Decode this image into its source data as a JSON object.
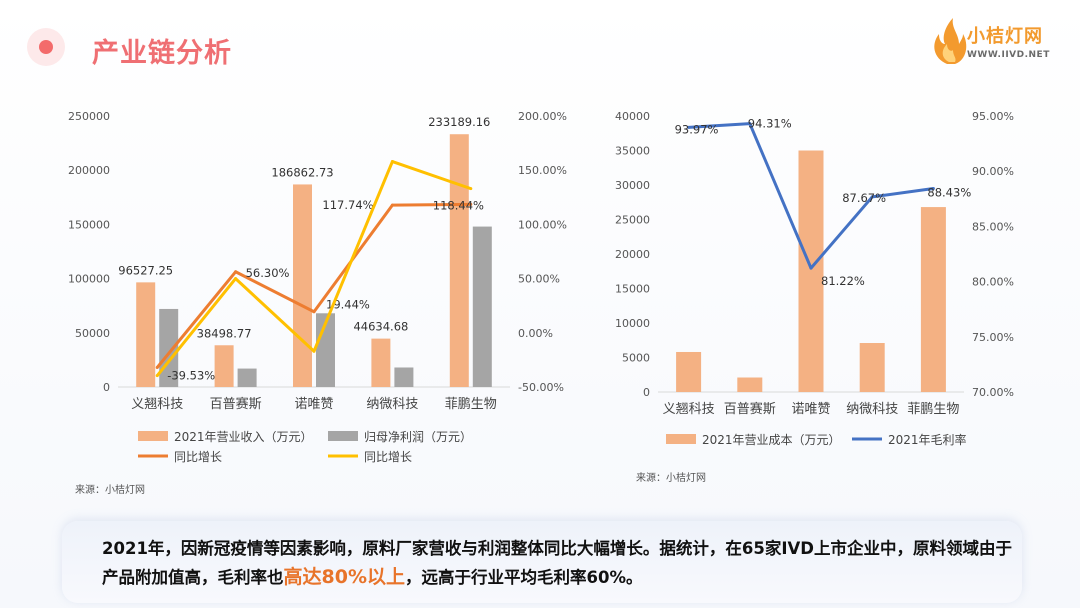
{
  "header": {
    "title": "产业链分析"
  },
  "logo": {
    "name": "小桔灯网",
    "url": "WWW.IIVD.NET"
  },
  "source_left": "来源：小桔灯网",
  "source_right": "来源：小桔灯网",
  "summary": {
    "part1": "2021年，因新冠疫情等因素影响，原料厂家营收与利润整体同比大幅增长。据统计，在65家IVD上市企业中，原料领域由于产品附加值高，毛利率也",
    "highlight": "高达80%以上",
    "part2": "，远高于行业平均毛利率60%。"
  },
  "colors": {
    "orange_bar": "#f4b183",
    "gray_bar": "#a5a5a5",
    "orange_line": "#ed7d31",
    "yellow_line": "#ffc000",
    "blue_line": "#4472c4"
  },
  "chart_data": [
    {
      "type": "bar",
      "categories": [
        "义翘科技",
        "百普赛斯",
        "诺唯赞",
        "纳微科技",
        "菲鹏生物"
      ],
      "series": [
        {
          "name": "2021年营业收入（万元）",
          "type": "bar",
          "axis": "left",
          "values": [
            96527.25,
            38498.77,
            186862.73,
            44634.68,
            233189.16
          ],
          "labels": [
            "96527.25",
            "38498.77",
            "186862.73",
            "44634.68",
            "233189.16"
          ]
        },
        {
          "name": "归母净利润（万元）",
          "type": "bar",
          "axis": "left",
          "values": [
            72000,
            17000,
            68000,
            18000,
            148000
          ]
        },
        {
          "name": "同比增长",
          "type": "line",
          "axis": "right",
          "values": [
            -32.0,
            56.3,
            19.44,
            117.74,
            118.44
          ],
          "labels": [
            "",
            "56.30%",
            "19.44%",
            "117.74%",
            "118.44%"
          ]
        },
        {
          "name": "同比增长",
          "type": "line",
          "axis": "right",
          "values": [
            -39.53,
            50.0,
            -17.0,
            158.0,
            133.0
          ],
          "labels": [
            "-39.53%",
            "",
            "",
            "",
            ""
          ]
        }
      ],
      "ylim": [
        0,
        250000
      ],
      "yticks": [
        "0",
        "50000",
        "100000",
        "150000",
        "200000",
        "250000"
      ],
      "y2lim": [
        -50,
        200
      ],
      "y2ticks": [
        "-50.00%",
        "0.00%",
        "50.00%",
        "100.00%",
        "150.00%",
        "200.00%"
      ],
      "legend": "bottom"
    },
    {
      "type": "bar",
      "categories": [
        "义翘科技",
        "百普赛斯",
        "诺唯赞",
        "纳微科技",
        "菲鹏生物"
      ],
      "series": [
        {
          "name": "2021年营业成本（万元）",
          "type": "bar",
          "axis": "left",
          "values": [
            5800,
            2100,
            35000,
            7100,
            26800
          ]
        },
        {
          "name": "2021年毛利率",
          "type": "line",
          "axis": "right",
          "values": [
            93.97,
            94.31,
            81.22,
            87.67,
            88.43
          ],
          "labels": [
            "93.97%",
            "94.31%",
            "81.22%",
            "87.67%",
            "88.43%"
          ]
        }
      ],
      "ylim": [
        0,
        40000
      ],
      "yticks": [
        "0",
        "5000",
        "10000",
        "15000",
        "20000",
        "25000",
        "30000",
        "35000",
        "40000"
      ],
      "y2lim": [
        70,
        95
      ],
      "y2ticks": [
        "70.00%",
        "75.00%",
        "80.00%",
        "85.00%",
        "90.00%",
        "95.00%"
      ],
      "legend": "bottom"
    }
  ]
}
